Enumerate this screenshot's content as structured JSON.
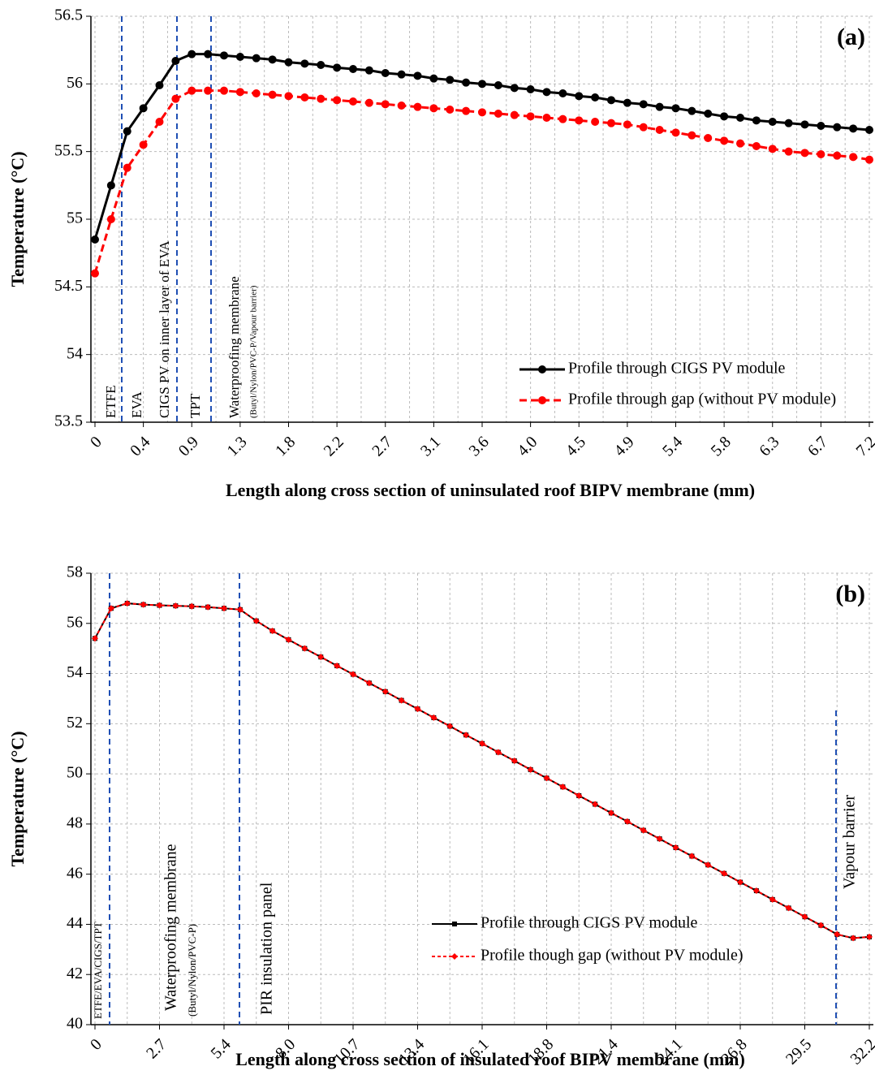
{
  "chart_data": [
    {
      "type": "line",
      "panel_label": "(a)",
      "x_label": "Length along cross section of uninsulated roof BIPV membrane (mm)",
      "y_label": "Temperature (°C)",
      "categories": [
        "0",
        null,
        null,
        "0.4",
        null,
        null,
        "0.9",
        null,
        null,
        "1.3",
        null,
        null,
        "1.8",
        null,
        null,
        "2.2",
        null,
        null,
        "2.7",
        null,
        null,
        "3.1",
        null,
        null,
        "3.6",
        null,
        null,
        "4.0",
        null,
        null,
        "4.5",
        null,
        null,
        "4.9",
        null,
        null,
        "5.4",
        null,
        null,
        "5.8",
        null,
        null,
        "6.3",
        null,
        null,
        "6.7",
        null,
        null,
        "7.2"
      ],
      "series": [
        {
          "name": "Profile through CIGS PV module",
          "color": "#000000",
          "marker": "circle",
          "dashed": false,
          "values": [
            54.85,
            55.25,
            55.65,
            55.82,
            55.99,
            56.17,
            56.22,
            56.22,
            56.21,
            56.2,
            56.19,
            56.18,
            56.16,
            56.15,
            56.14,
            56.12,
            56.11,
            56.1,
            56.08,
            56.07,
            56.06,
            56.04,
            56.03,
            56.01,
            56.0,
            55.99,
            55.97,
            55.96,
            55.94,
            55.93,
            55.91,
            55.9,
            55.88,
            55.86,
            55.85,
            55.83,
            55.82,
            55.8,
            55.78,
            55.76,
            55.75,
            55.73,
            55.72,
            55.71,
            55.7,
            55.69,
            55.68,
            55.67,
            55.66
          ]
        },
        {
          "name": "Profile through gap (without PV module)",
          "color": "#ff0000",
          "marker": "circle",
          "dashed": true,
          "values": [
            54.6,
            55.0,
            55.38,
            55.55,
            55.72,
            55.89,
            55.95,
            55.95,
            55.95,
            55.94,
            55.93,
            55.92,
            55.91,
            55.9,
            55.89,
            55.88,
            55.87,
            55.86,
            55.85,
            55.84,
            55.83,
            55.82,
            55.81,
            55.8,
            55.79,
            55.78,
            55.77,
            55.76,
            55.75,
            55.74,
            55.73,
            55.72,
            55.71,
            55.7,
            55.68,
            55.66,
            55.64,
            55.62,
            55.6,
            55.58,
            55.56,
            55.54,
            55.52,
            55.5,
            55.49,
            55.48,
            55.47,
            55.46,
            55.44
          ]
        }
      ],
      "ylim": [
        53.5,
        56.5
      ],
      "yticks": [
        53.5,
        54,
        54.5,
        55,
        55.5,
        56,
        56.5
      ],
      "grid": true,
      "legend": "lower right",
      "annotations": [
        "ETFE",
        "EVA",
        "CIGS PV on inner layer of EVA",
        "TPT",
        "Waterproofing membrane",
        "(Butyl/Nylon/PVC-P/Vapour barrier)"
      ]
    },
    {
      "type": "line",
      "panel_label": "(b)",
      "x_label": "Length along cross section of insulated roof BIPV membrane (mm)",
      "y_label": "Temperature (°C)",
      "categories": [
        "0",
        null,
        null,
        null,
        "2.7",
        null,
        null,
        null,
        "5.4",
        null,
        null,
        null,
        "8.0",
        null,
        null,
        null,
        "10.7",
        null,
        null,
        null,
        "13.4",
        null,
        null,
        null,
        "16.1",
        null,
        null,
        null,
        "18.8",
        null,
        null,
        null,
        "21.4",
        null,
        null,
        null,
        "24.1",
        null,
        null,
        null,
        "26.8",
        null,
        null,
        null,
        "29.5",
        null,
        null,
        null,
        "32.2"
      ],
      "series": [
        {
          "name": "Profile through CIGS PV module",
          "color": "#000000",
          "marker": "square",
          "dashed": false,
          "values": [
            55.4,
            56.6,
            56.8,
            56.75,
            56.72,
            56.7,
            56.68,
            56.65,
            56.6,
            56.55,
            56.1,
            55.7,
            55.35,
            55.0,
            54.66,
            54.31,
            53.97,
            53.62,
            53.28,
            52.93,
            52.59,
            52.24,
            51.9,
            51.55,
            51.21,
            50.86,
            50.52,
            50.17,
            49.83,
            49.48,
            49.13,
            48.79,
            48.44,
            48.1,
            47.75,
            47.41,
            47.06,
            46.72,
            46.37,
            46.03,
            45.68,
            45.34,
            44.99,
            44.65,
            44.3,
            43.96,
            43.6,
            43.45,
            43.5
          ]
        },
        {
          "name": "Profile though gap (without PV module)",
          "color": "#ff0000",
          "marker": "diamond",
          "dashed": true,
          "values": [
            55.4,
            56.6,
            56.8,
            56.75,
            56.72,
            56.7,
            56.68,
            56.65,
            56.6,
            56.55,
            56.1,
            55.7,
            55.35,
            55.0,
            54.66,
            54.31,
            53.97,
            53.62,
            53.28,
            52.93,
            52.59,
            52.24,
            51.9,
            51.55,
            51.21,
            50.86,
            50.52,
            50.17,
            49.83,
            49.48,
            49.13,
            48.79,
            48.44,
            48.1,
            47.75,
            47.41,
            47.06,
            46.72,
            46.37,
            46.03,
            45.68,
            45.34,
            44.99,
            44.65,
            44.3,
            43.96,
            43.6,
            43.45,
            43.5
          ]
        }
      ],
      "ylim": [
        40,
        58
      ],
      "yticks": [
        40,
        42,
        44,
        46,
        48,
        50,
        52,
        54,
        56,
        58
      ],
      "grid": true,
      "legend": "lower right",
      "annotations": [
        "ETFE/EVA/CIGS/TPT",
        "Waterproofing membrane",
        "(Butyl/Nylon/PVC-P)",
        "PIR insulation panel",
        "Vapour barrier"
      ]
    }
  ]
}
